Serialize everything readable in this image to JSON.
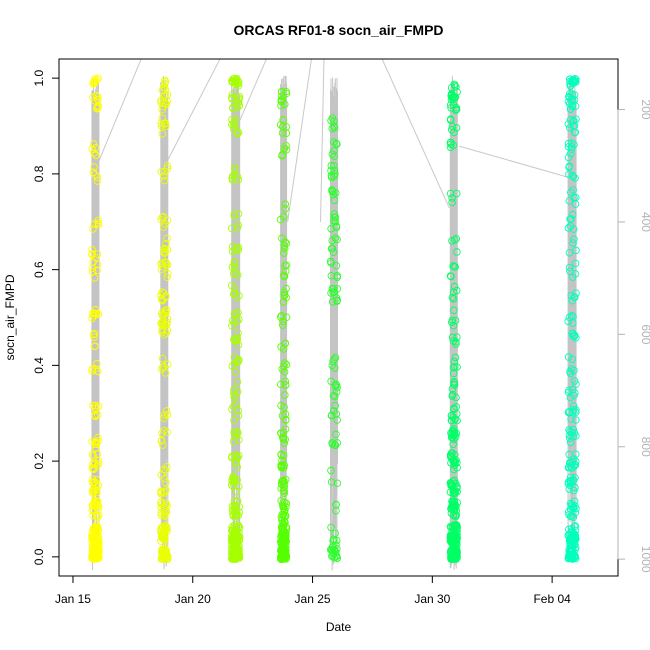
{
  "chart_data": {
    "type": "scatter",
    "title": "ORCAS RF01-8 socn_air_FMPD",
    "xlabel": "Date",
    "ylabel": "socn_air_FMPD",
    "xlim": [
      "2016-01-14T10:00",
      "2016-02-06T18:00"
    ],
    "ylim": [
      -0.04,
      1.04
    ],
    "x_ticks": [
      "2016-01-15",
      "2016-01-20",
      "2016-01-25",
      "2016-01-30",
      "2016-02-04"
    ],
    "x_tick_labels": [
      "Jan 15",
      "Jan 20",
      "Jan 25",
      "Jan 30",
      "Feb 04"
    ],
    "y_ticks": [
      0.0,
      0.2,
      0.4,
      0.6,
      0.8,
      1.0
    ],
    "y_tick_labels": [
      "0.0",
      "0.2",
      "0.4",
      "0.6",
      "0.8",
      "1.0"
    ],
    "right_axis": {
      "ylim": [
        1030,
        110
      ],
      "ticks": [
        200,
        400,
        600,
        800,
        1000
      ],
      "tick_labels": [
        "200",
        "400",
        "600",
        "800",
        "1000"
      ],
      "color": "#b3b3b3"
    },
    "marker": "open-circle",
    "flights": [
      {
        "start": "2016-01-15T19:00",
        "end": "2016-01-16T02:00",
        "color": "#ffff00",
        "points": [
          [
            0.0,
            60
          ],
          [
            0.02,
            40
          ],
          [
            0.05,
            35
          ],
          [
            0.1,
            20
          ],
          [
            0.15,
            15
          ],
          [
            0.2,
            12
          ],
          [
            0.24,
            8
          ],
          [
            0.3,
            8
          ],
          [
            0.4,
            6
          ],
          [
            0.45,
            5
          ],
          [
            0.5,
            8
          ],
          [
            0.6,
            6
          ],
          [
            0.63,
            5
          ],
          [
            0.7,
            5
          ],
          [
            0.8,
            5
          ],
          [
            0.85,
            5
          ],
          [
            0.95,
            10
          ],
          [
            1.0,
            8
          ]
        ]
      },
      {
        "start": "2016-01-18T16:00",
        "end": "2016-01-18T23:00",
        "color": "#eaff00",
        "points": [
          [
            0.0,
            40
          ],
          [
            0.05,
            25
          ],
          [
            0.1,
            15
          ],
          [
            0.15,
            8
          ],
          [
            0.18,
            4
          ],
          [
            0.25,
            6
          ],
          [
            0.3,
            4
          ],
          [
            0.4,
            6
          ],
          [
            0.48,
            10
          ],
          [
            0.5,
            12
          ],
          [
            0.55,
            8
          ],
          [
            0.6,
            10
          ],
          [
            0.65,
            8
          ],
          [
            0.7,
            6
          ],
          [
            0.8,
            6
          ],
          [
            0.9,
            8
          ],
          [
            0.95,
            10
          ],
          [
            0.98,
            8
          ]
        ]
      },
      {
        "start": "2016-01-21T15:00",
        "end": "2016-01-21T23:00",
        "color": "#a6ff00",
        "points": [
          [
            0.0,
            60
          ],
          [
            0.03,
            40
          ],
          [
            0.05,
            30
          ],
          [
            0.1,
            20
          ],
          [
            0.15,
            12
          ],
          [
            0.2,
            10
          ],
          [
            0.25,
            8
          ],
          [
            0.3,
            6
          ],
          [
            0.35,
            6
          ],
          [
            0.4,
            8
          ],
          [
            0.45,
            8
          ],
          [
            0.5,
            8
          ],
          [
            0.55,
            6
          ],
          [
            0.6,
            8
          ],
          [
            0.65,
            6
          ],
          [
            0.7,
            6
          ],
          [
            0.8,
            8
          ],
          [
            0.9,
            10
          ],
          [
            0.95,
            12
          ],
          [
            1.0,
            20
          ]
        ]
      },
      {
        "start": "2016-01-23T16:00",
        "end": "2016-01-23T22:00",
        "color": "#55ff00",
        "points": [
          [
            0.0,
            55
          ],
          [
            0.03,
            40
          ],
          [
            0.06,
            30
          ],
          [
            0.1,
            18
          ],
          [
            0.15,
            12
          ],
          [
            0.2,
            10
          ],
          [
            0.25,
            8
          ],
          [
            0.3,
            6
          ],
          [
            0.35,
            5
          ],
          [
            0.4,
            5
          ],
          [
            0.45,
            4
          ],
          [
            0.5,
            5
          ],
          [
            0.55,
            6
          ],
          [
            0.6,
            5
          ],
          [
            0.65,
            6
          ],
          [
            0.72,
            4
          ],
          [
            0.85,
            5
          ],
          [
            0.9,
            6
          ],
          [
            0.96,
            10
          ]
        ]
      },
      {
        "start": "2016-01-25T18:00",
        "end": "2016-01-26T01:00",
        "color": "#2bff2b",
        "points": [
          [
            0.0,
            12
          ],
          [
            0.02,
            8
          ],
          [
            0.05,
            4
          ],
          [
            0.1,
            3
          ],
          [
            0.17,
            3
          ],
          [
            0.25,
            6
          ],
          [
            0.3,
            6
          ],
          [
            0.35,
            8
          ],
          [
            0.4,
            5
          ],
          [
            0.55,
            10
          ],
          [
            0.6,
            6
          ],
          [
            0.65,
            6
          ],
          [
            0.7,
            8
          ],
          [
            0.75,
            6
          ],
          [
            0.8,
            8
          ],
          [
            0.85,
            6
          ],
          [
            0.9,
            6
          ]
        ]
      },
      {
        "start": "2016-01-30T18:00",
        "end": "2016-01-31T01:00",
        "color": "#00ff66",
        "points": [
          [
            0.0,
            60
          ],
          [
            0.03,
            45
          ],
          [
            0.05,
            40
          ],
          [
            0.1,
            28
          ],
          [
            0.15,
            22
          ],
          [
            0.2,
            18
          ],
          [
            0.25,
            15
          ],
          [
            0.3,
            12
          ],
          [
            0.35,
            8
          ],
          [
            0.4,
            6
          ],
          [
            0.45,
            5
          ],
          [
            0.5,
            5
          ],
          [
            0.55,
            5
          ],
          [
            0.6,
            5
          ],
          [
            0.65,
            4
          ],
          [
            0.75,
            4
          ],
          [
            0.85,
            5
          ],
          [
            0.9,
            6
          ],
          [
            0.95,
            10
          ],
          [
            0.97,
            12
          ]
        ]
      },
      {
        "start": "2016-02-04T16:00",
        "end": "2016-02-05T00:00",
        "color": "#00ffbb",
        "points": [
          [
            0.0,
            30
          ],
          [
            0.03,
            25
          ],
          [
            0.05,
            20
          ],
          [
            0.1,
            16
          ],
          [
            0.15,
            14
          ],
          [
            0.2,
            15
          ],
          [
            0.25,
            10
          ],
          [
            0.3,
            10
          ],
          [
            0.35,
            8
          ],
          [
            0.4,
            6
          ],
          [
            0.45,
            6
          ],
          [
            0.5,
            5
          ],
          [
            0.55,
            5
          ],
          [
            0.6,
            5
          ],
          [
            0.65,
            4
          ],
          [
            0.7,
            6
          ],
          [
            0.75,
            6
          ],
          [
            0.8,
            6
          ],
          [
            0.85,
            8
          ],
          [
            0.9,
            10
          ],
          [
            0.95,
            15
          ],
          [
            1.0,
            20
          ]
        ]
      }
    ],
    "pressure_transits": [
      {
        "from": [
          "2016-01-16T00:00",
          300
        ],
        "to": [
          "2016-01-18T08:00",
          60
        ]
      },
      {
        "from": [
          "2016-01-18T20:00",
          300
        ],
        "to": [
          "2016-01-21T12:00",
          80
        ]
      },
      {
        "from": [
          "2016-01-21T23:00",
          220
        ],
        "to": [
          "2016-01-23T09:00",
          80
        ]
      },
      {
        "from": [
          "2016-01-23T23:00",
          400
        ],
        "to": [
          "2016-01-25T03:00",
          60
        ]
      },
      {
        "from": [
          "2016-01-25T08:00",
          400
        ],
        "to": [
          "2016-01-25T12:00",
          60
        ]
      },
      {
        "from": [
          "2016-01-27T09:00",
          60
        ],
        "to": [
          "2016-01-30T17:00",
          375
        ]
      },
      {
        "from": [
          "2016-01-31T03:00",
          265
        ],
        "to": [
          "2016-02-04T15:00",
          320
        ]
      }
    ]
  }
}
